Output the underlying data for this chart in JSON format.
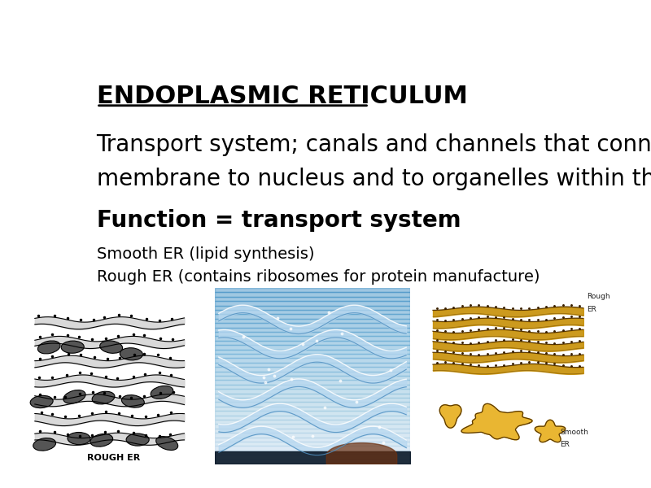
{
  "title": "ENDOPLASMIC RETICULUM",
  "title_fontsize": 22,
  "line1": "Transport system; canals and channels that connect",
  "line2": "membrane to nucleus and to organelles within the cell",
  "body_fontsize": 20,
  "line3": "Function = transport system",
  "line3_fontsize": 20,
  "line4": "Smooth ER (lipid synthesis)",
  "line5": "Rough ER (contains ribosomes for protein manufacture)",
  "small_fontsize": 14,
  "bg_color": "#ffffff",
  "text_color": "#000000"
}
